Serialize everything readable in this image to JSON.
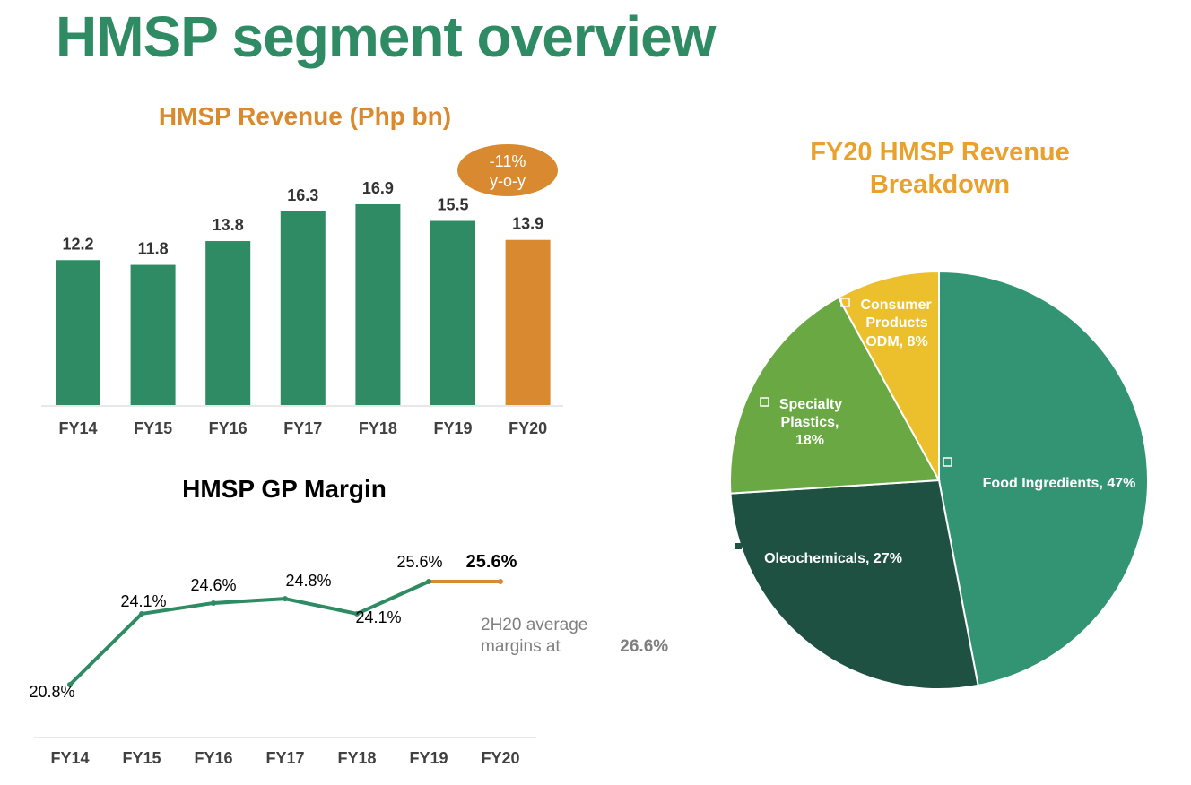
{
  "page": {
    "title": "HMSP segment overview"
  },
  "colors": {
    "green": "#2e8b63",
    "orange": "#d98a30",
    "yoy_bubble": "#d98a30",
    "pie_title": "#e9a12b",
    "food_ingredients": "#339473",
    "oleochemicals": "#1e5142",
    "specialty_plastics": "#6aa844",
    "consumer_products": "#ecc02c"
  },
  "chart_data": [
    {
      "type": "bar",
      "title": "HMSP Revenue (Php bn)",
      "categories": [
        "FY14",
        "FY15",
        "FY16",
        "FY17",
        "FY18",
        "FY19",
        "FY20"
      ],
      "values": [
        12.2,
        11.8,
        13.8,
        16.3,
        16.9,
        15.5,
        13.9
      ],
      "data_labels": [
        "12.2",
        "11.8",
        "13.8",
        "16.3",
        "16.9",
        "15.5",
        "13.9"
      ],
      "highlight_index": 6,
      "annotation": {
        "line1": "-11%",
        "line2": "y-o-y"
      },
      "ylim": [
        0,
        17.5
      ],
      "grid": false
    },
    {
      "type": "line",
      "title": "HMSP GP Margin",
      "categories": [
        "FY14",
        "FY15",
        "FY16",
        "FY17",
        "FY18",
        "FY19",
        "FY20"
      ],
      "values": [
        20.8,
        24.1,
        24.6,
        24.8,
        24.1,
        25.6,
        25.6
      ],
      "data_labels": [
        "20.8%",
        "24.1%",
        "24.6%",
        "24.8%",
        "24.1%",
        "25.6%",
        "25.6%"
      ],
      "highlight_index": 6,
      "annotation": {
        "text": "2H20 average margins at",
        "value": "26.6%"
      },
      "ylim": [
        20,
        26.5
      ],
      "grid": false
    },
    {
      "type": "pie",
      "title_line1": "FY20 HMSP Revenue",
      "title_line2": "Breakdown",
      "slices": [
        {
          "label": "Food Ingredients",
          "value": 47,
          "text": "Food Ingredients, 47%"
        },
        {
          "label": "Oleochemicals",
          "value": 27,
          "text": "Oleochemicals, 27%"
        },
        {
          "label": "Specialty Plastics",
          "value": 18,
          "lines": [
            "Specialty",
            "Plastics,",
            "18%"
          ]
        },
        {
          "label": "Consumer Products ODM",
          "value": 8,
          "lines": [
            "Consumer",
            "Products",
            "ODM, 8%"
          ]
        }
      ]
    }
  ]
}
